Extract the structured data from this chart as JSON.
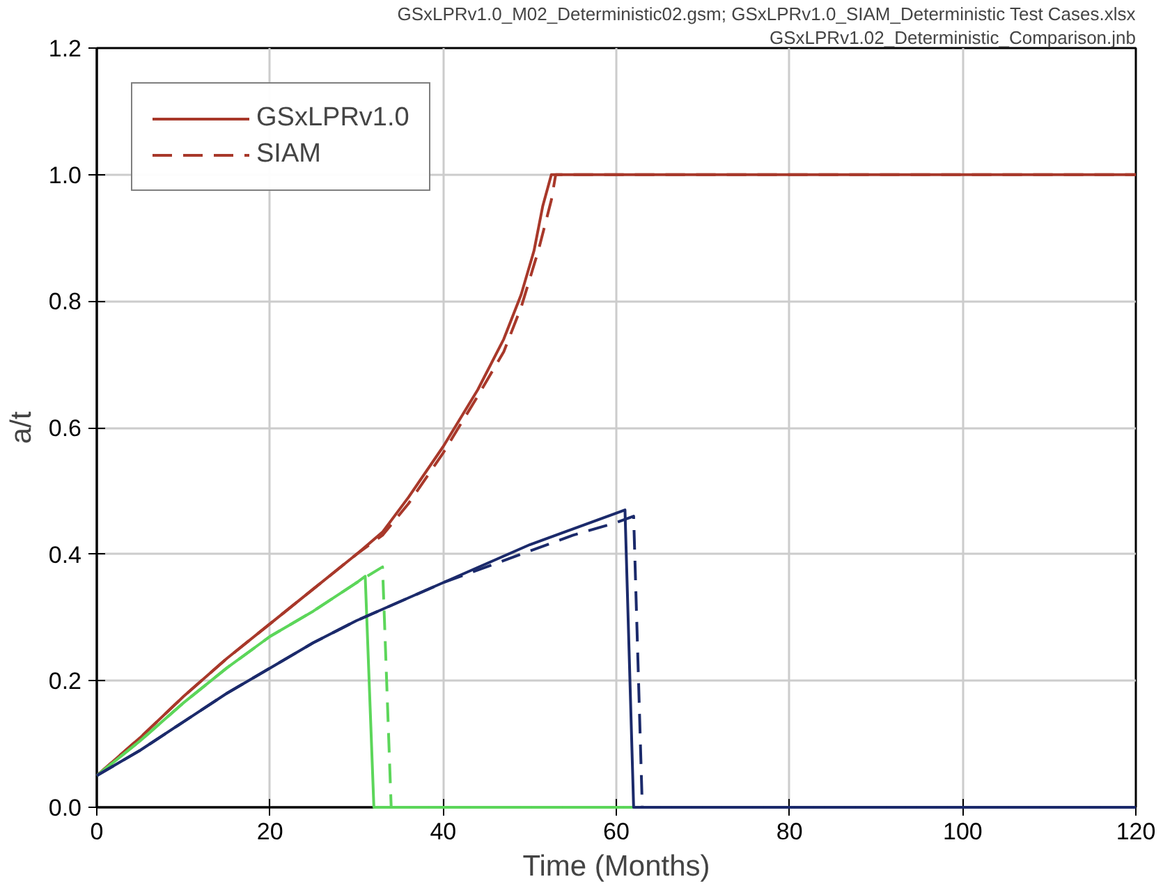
{
  "chart_data": {
    "type": "line",
    "annotations": [
      "GSxLPRv1.0_M02_Deterministic02.gsm; GSxLPRv1.0_SIAM_Deterministic Test Cases.xlsx",
      "GSxLPRv1.02_Deterministic_Comparison.jnb"
    ],
    "xlabel": "Time (Months)",
    "ylabel": "a/t",
    "xlim": [
      0,
      120
    ],
    "xticks": [
      0,
      20,
      40,
      60,
      80,
      100,
      120
    ],
    "ylim": [
      0,
      1.2
    ],
    "yticks": [
      {
        "value": 0,
        "label": "0.0"
      },
      {
        "value": 0.2,
        "label": "0.2"
      },
      {
        "value": 0.4,
        "label": "0.4"
      },
      {
        "value": 0.6,
        "label": "0.6"
      },
      {
        "value": 0.8,
        "label": "0.8"
      },
      {
        "value": 1.0,
        "label": "1.0"
      },
      {
        "value": 1.2,
        "label": "1.2"
      }
    ],
    "grid": true,
    "legend": "top left",
    "marker": "none",
    "series": [
      {
        "name": "GSxLPRv1.0",
        "color": "#a8382a",
        "line_style": "solid",
        "x": [
          0,
          5,
          10,
          15,
          20,
          25,
          30,
          33,
          36,
          40,
          44,
          47,
          49,
          50.5,
          51.5,
          52.5,
          120
        ],
        "values": [
          0.05,
          0.11,
          0.175,
          0.235,
          0.29,
          0.345,
          0.4,
          0.435,
          0.49,
          0.57,
          0.66,
          0.74,
          0.81,
          0.88,
          0.95,
          1.0,
          1.0
        ]
      },
      {
        "name": "SIAM",
        "color": "#a8382a",
        "line_style": "dashed",
        "x": [
          0,
          5,
          10,
          15,
          20,
          25,
          30,
          33,
          36,
          40,
          44,
          47,
          49,
          51,
          52.5,
          53,
          120
        ],
        "values": [
          0.05,
          0.11,
          0.175,
          0.235,
          0.29,
          0.345,
          0.4,
          0.43,
          0.48,
          0.56,
          0.65,
          0.72,
          0.79,
          0.88,
          0.96,
          1.0,
          1.0
        ]
      },
      {
        "color": "#5cd65a",
        "line_style": "solid",
        "x": [
          0,
          5,
          10,
          15,
          20,
          25,
          30,
          31,
          32,
          120
        ],
        "values": [
          0.05,
          0.105,
          0.165,
          0.22,
          0.27,
          0.31,
          0.355,
          0.365,
          0.0,
          0.0
        ]
      },
      {
        "color": "#5cd65a",
        "line_style": "dashed",
        "x": [
          0,
          5,
          10,
          15,
          20,
          25,
          30,
          33,
          34,
          120
        ],
        "values": [
          0.05,
          0.105,
          0.165,
          0.22,
          0.27,
          0.31,
          0.355,
          0.38,
          0.0,
          0.0
        ]
      },
      {
        "color": "#1b2a6b",
        "line_style": "solid",
        "x": [
          0,
          5,
          10,
          15,
          20,
          25,
          30,
          35,
          40,
          45,
          50,
          55,
          61,
          62,
          120
        ],
        "values": [
          0.05,
          0.09,
          0.135,
          0.18,
          0.22,
          0.26,
          0.295,
          0.325,
          0.355,
          0.385,
          0.415,
          0.44,
          0.47,
          0.0,
          0.0
        ]
      },
      {
        "color": "#1b2a6b",
        "line_style": "dashed",
        "x": [
          0,
          5,
          10,
          15,
          20,
          25,
          30,
          35,
          40,
          45,
          50,
          55,
          60,
          62,
          63,
          120
        ],
        "values": [
          0.05,
          0.09,
          0.135,
          0.18,
          0.22,
          0.26,
          0.295,
          0.325,
          0.355,
          0.38,
          0.405,
          0.43,
          0.45,
          0.46,
          0.0,
          0.0
        ]
      }
    ]
  }
}
